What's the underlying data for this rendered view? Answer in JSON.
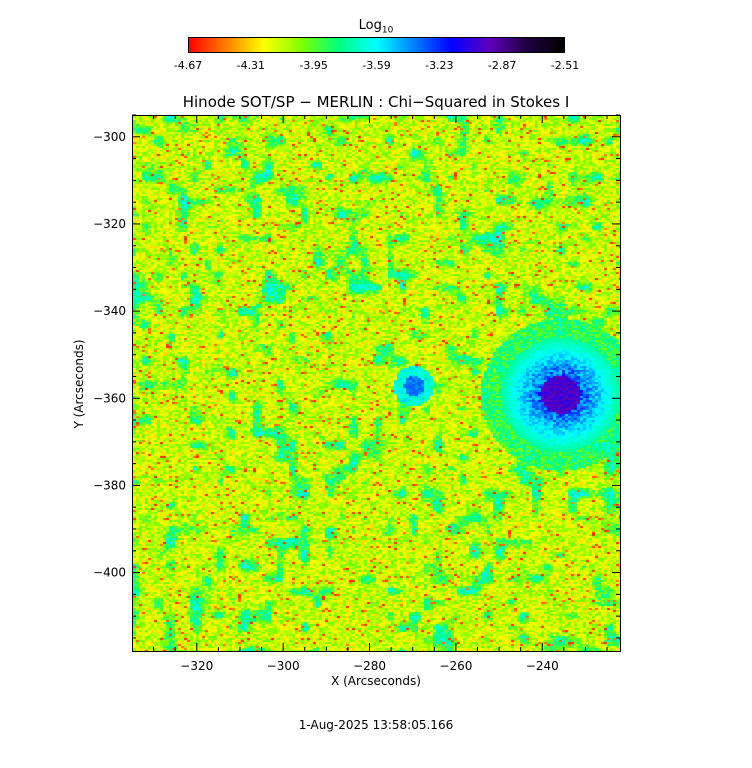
{
  "colorbar": {
    "label": "Log",
    "label_sub": "10",
    "ticks": [
      "-4.67",
      "-4.31",
      "-3.95",
      "-3.59",
      "-3.23",
      "-2.87",
      "-2.51"
    ],
    "colors": [
      "#ff0000",
      "#ff8000",
      "#ffff00",
      "#80ff00",
      "#00ff80",
      "#00ffff",
      "#0080ff",
      "#0000ff",
      "#6000c0",
      "#200040",
      "#000000"
    ]
  },
  "footer": {
    "timestamp": "1-Aug-2025 13:58:05.166"
  },
  "chart_data": {
    "type": "heatmap",
    "title": "Hinode SOT/SP − MERLIN : Chi−Squared in Stokes I",
    "xlabel": "X (Arcseconds)",
    "ylabel": "Y (Arcseconds)",
    "xlim": [
      -335,
      -222
    ],
    "ylim": [
      -418,
      -295
    ],
    "x_ticks": [
      -320,
      -300,
      -280,
      -260,
      -240
    ],
    "y_ticks": [
      -300,
      -320,
      -340,
      -360,
      -380,
      -400
    ],
    "x_tick_labels": [
      "−320",
      "−300",
      "−280",
      "−260",
      "−240"
    ],
    "y_tick_labels": [
      "−300",
      "−320",
      "−340",
      "−360",
      "−380",
      "−400"
    ],
    "value_range": [
      -4.67,
      -2.51
    ],
    "colorscale": "red-yellow-green-cyan-blue-black",
    "features": [
      {
        "name": "sunspot",
        "x": -236,
        "y": -359,
        "peak_value": -2.9
      },
      {
        "name": "pore",
        "x": -270,
        "y": -357,
        "peak_value": -3.3
      }
    ]
  }
}
